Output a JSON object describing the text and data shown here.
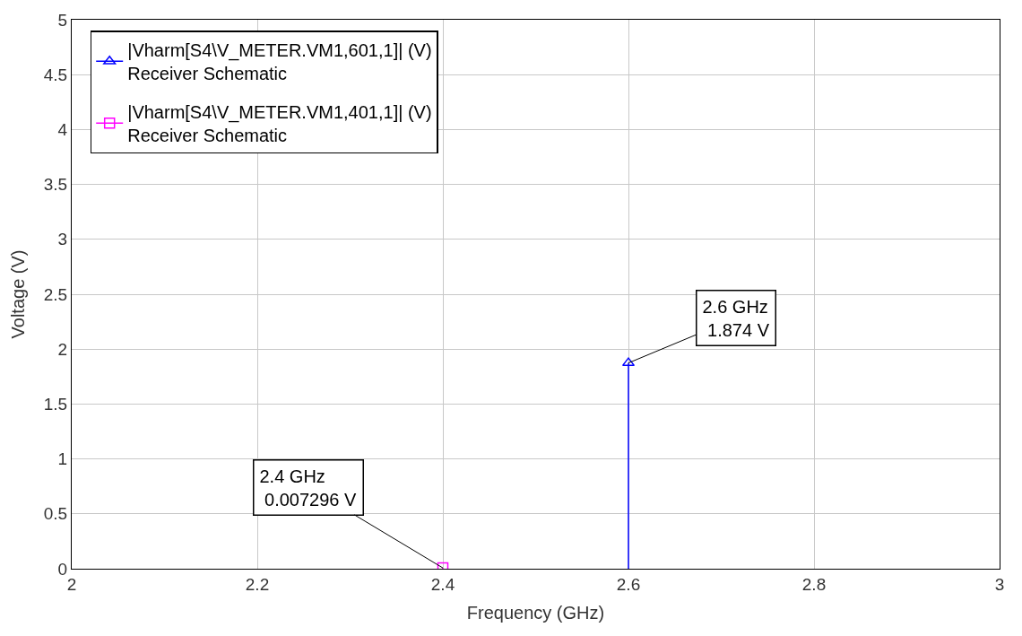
{
  "chart_data": {
    "type": "lollipop",
    "xlabel": "Frequency (GHz)",
    "ylabel": "Voltage (V)",
    "xlim": [
      2,
      3
    ],
    "xticks": [
      2,
      2.2,
      2.4,
      2.6,
      2.8,
      3
    ],
    "ylim": [
      0,
      5
    ],
    "yticks": [
      0,
      0.5,
      1,
      1.5,
      2,
      2.5,
      3,
      3.5,
      4,
      4.5,
      5
    ],
    "grid": true,
    "legend": "top left",
    "series": [
      {
        "name": "|Vharm[S4\\V_METER.VM1,601,1]| (V)\nReceiver Schematic",
        "color": "#0000ff",
        "marker": "triangle",
        "x": [
          2.6
        ],
        "values": [
          1.874
        ]
      },
      {
        "name": "|Vharm[S4\\V_METER.VM1,401,1]| (V)\nReceiver Schematic",
        "color": "#ff00ff",
        "marker": "square",
        "x": [
          2.4
        ],
        "values": [
          0.007296
        ]
      }
    ],
    "annotations": [
      {
        "text": "2.6 GHz\n 1.874 V",
        "x": 2.6,
        "y": 1.874
      },
      {
        "text": "2.4 GHz\n 0.007296 V",
        "x": 2.4,
        "y": 0.007296
      }
    ]
  }
}
